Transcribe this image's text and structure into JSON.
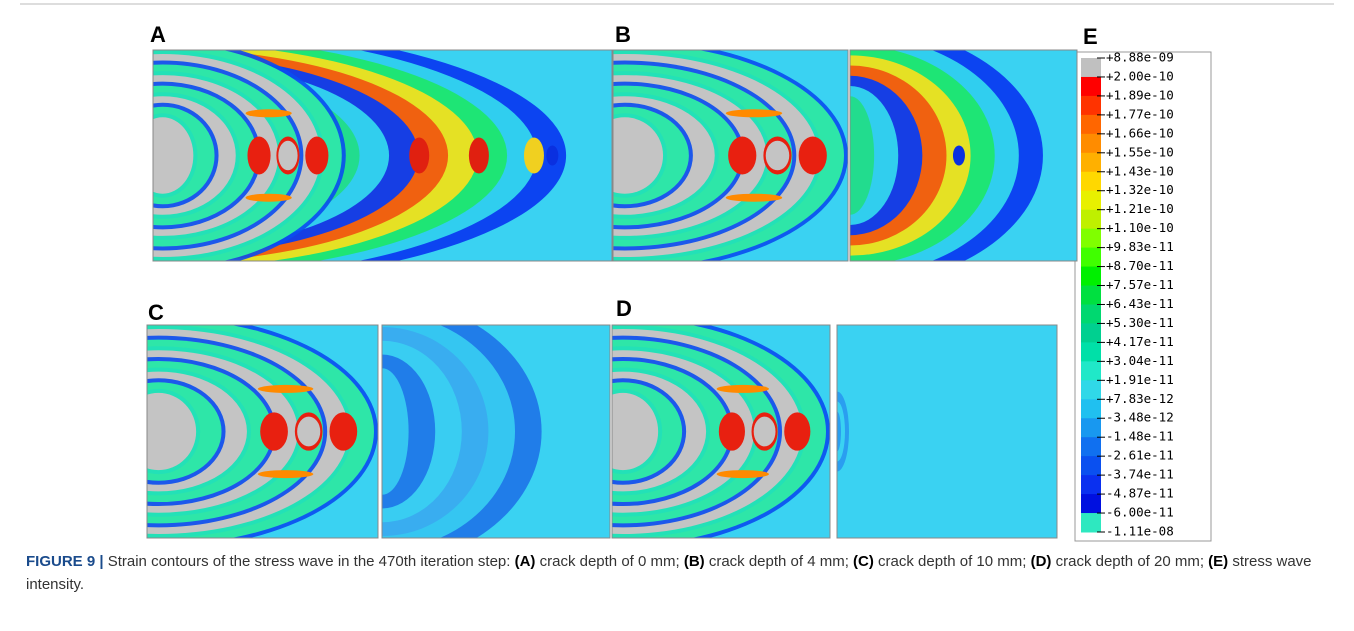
{
  "panels": [
    {
      "label": "A"
    },
    {
      "label": "B"
    },
    {
      "label": "C"
    },
    {
      "label": "D"
    }
  ],
  "legend": {
    "label": "E",
    "entries": [
      "+8.88e-09",
      "+2.00e-10",
      "+1.89e-10",
      "+1.77e-10",
      "+1.66e-10",
      "+1.55e-10",
      "+1.43e-10",
      "+1.32e-10",
      "+1.21e-10",
      "+1.10e-10",
      "+9.83e-11",
      "+8.70e-11",
      "+7.57e-11",
      "+6.43e-11",
      "+5.30e-11",
      "+4.17e-11",
      "+3.04e-11",
      "+1.91e-11",
      "+7.83e-12",
      "-3.48e-12",
      "-1.48e-11",
      "-2.61e-11",
      "-3.74e-11",
      "-4.87e-11",
      "-6.00e-11",
      "-1.11e-08"
    ]
  },
  "caption": {
    "label": "FIGURE 9 |",
    "segments": [
      {
        "text": " Strain contours of the stress wave in the 470th iteration step: ",
        "bold": false
      },
      {
        "text": "(A)",
        "bold": true
      },
      {
        "text": " crack depth of 0 mm; ",
        "bold": false
      },
      {
        "text": "(B)",
        "bold": true
      },
      {
        "text": " crack depth of 4 mm; ",
        "bold": false
      },
      {
        "text": "(C)",
        "bold": true
      },
      {
        "text": " crack depth of 10 mm; ",
        "bold": false
      },
      {
        "text": "(D)",
        "bold": true
      },
      {
        "text": " crack depth of 20 mm; ",
        "bold": false
      },
      {
        "text": "(E)",
        "bold": true
      },
      {
        "text": " stress wave intensity.",
        "bold": false
      }
    ]
  }
}
